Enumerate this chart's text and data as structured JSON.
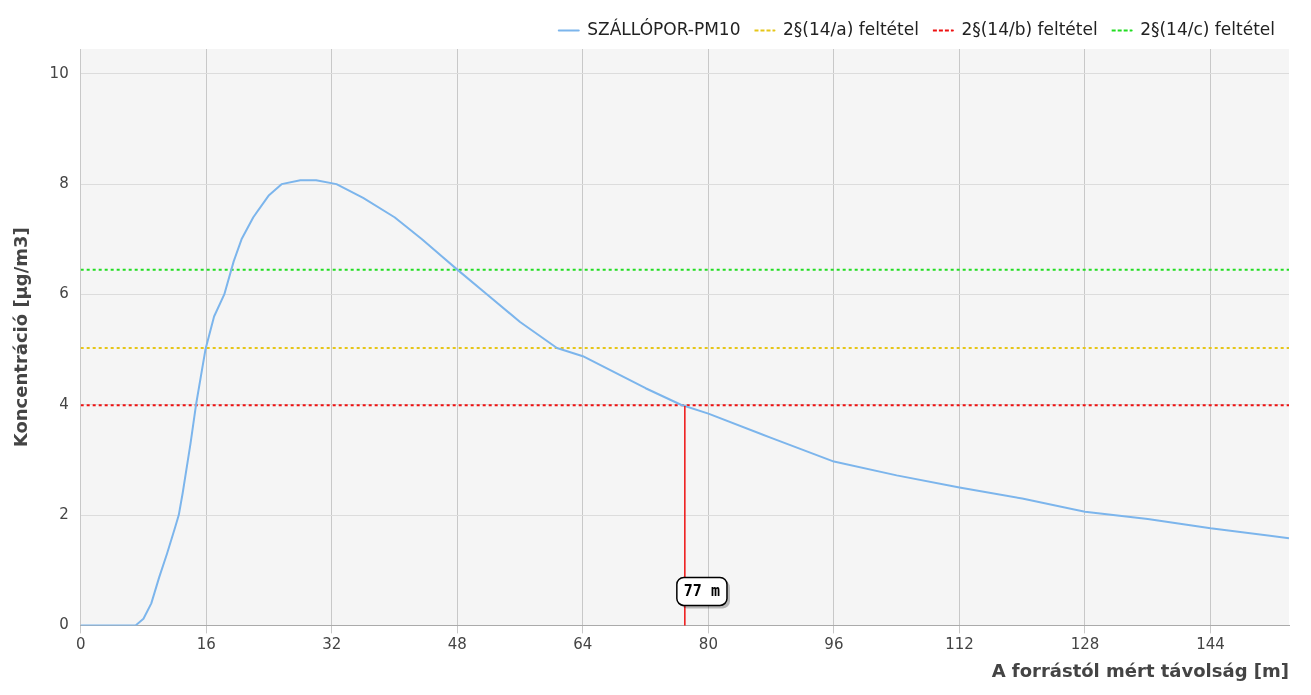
{
  "chart_data": {
    "type": "line",
    "xlabel": "A forrástól mért távolság [m]",
    "ylabel": "Koncentráció [µg/m3]",
    "xlim": [
      0,
      154
    ],
    "xticks": [
      0,
      16,
      32,
      48,
      64,
      80,
      96,
      112,
      128,
      144
    ],
    "ylim": [
      0,
      10.45
    ],
    "yticks": [
      0,
      2,
      4,
      6,
      8,
      10
    ],
    "grid": true,
    "legend": "top right",
    "marker": "none",
    "series": [
      {
        "name": "SZÁLLÓPOR-PM10",
        "color": "#7cb5ec",
        "x": [
          0,
          7,
          8,
          9,
          10,
          11,
          12,
          12.5,
          13,
          14,
          14.7,
          15.9,
          17,
          18.3,
          19.5,
          20.5,
          22,
          24,
          25.6,
          28,
          30,
          32.6,
          36,
          40,
          43.5,
          48,
          51.8,
          56,
          60.7,
          64,
          72,
          76.5,
          80,
          88,
          96,
          104,
          112,
          120,
          128,
          136,
          144,
          154
        ],
        "values": [
          0,
          0,
          0.12,
          0.4,
          0.87,
          1.3,
          1.76,
          2,
          2.4,
          3.3,
          4,
          5,
          5.6,
          6,
          6.6,
          7,
          7.4,
          7.8,
          8,
          8.07,
          8.07,
          8,
          7.75,
          7.4,
          7,
          6.45,
          6,
          5.5,
          5.03,
          4.88,
          4.3,
          4,
          3.84,
          3.4,
          2.97,
          2.72,
          2.5,
          2.3,
          2.06,
          1.93,
          1.76,
          1.58
        ]
      },
      {
        "name": "2§(14/a) feltétel",
        "color": "#e6c619",
        "line_style": "dotted",
        "x": [
          0,
          154
        ],
        "values": [
          5.03,
          5.03
        ]
      },
      {
        "name": "2§(14/b) feltétel",
        "color": "#ee1111",
        "line_style": "dotted",
        "x": [
          0,
          154
        ],
        "values": [
          3.99,
          3.99
        ]
      },
      {
        "name": "2§(14/c) feltétel",
        "color": "#22dd22",
        "line_style": "dotted",
        "x": [
          0,
          154
        ],
        "values": [
          6.45,
          6.45
        ]
      }
    ],
    "ref_lines": [
      {
        "axis": "x",
        "value": 77,
        "label": "77 m",
        "color": "#ee1111"
      }
    ]
  }
}
